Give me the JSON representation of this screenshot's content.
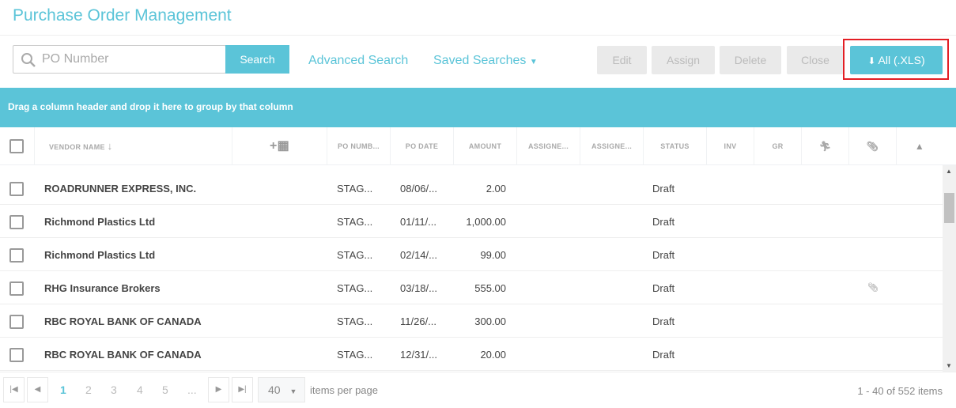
{
  "title": "Purchase Order Management",
  "toolbar": {
    "search_placeholder": "PO Number",
    "search": "Search",
    "advanced": "Advanced Search",
    "saved": "Saved Searches",
    "edit": "Edit",
    "assign": "Assign",
    "delete": "Delete",
    "close": "Close",
    "export": "All (.XLS)"
  },
  "group_hint": "Drag a column header and drop it here to group by that column",
  "columns": {
    "vendor": "VENDOR NAME",
    "po_number": "PO NUMB...",
    "po_date": "PO DATE",
    "amount": "AMOUNT",
    "assignee1": "ASSIGNE...",
    "assignee2": "ASSIGNE...",
    "status": "STATUS",
    "inv": "INV",
    "gr": "GR"
  },
  "rows": [
    {
      "vendor": "ROADRUNNER EXPRESS, INC.",
      "po": "STAG...",
      "date": "08/06/...",
      "amount": "2.00",
      "status": "Draft",
      "attachment": false
    },
    {
      "vendor": "Richmond Plastics Ltd",
      "po": "STAG...",
      "date": "01/11/...",
      "amount": "1,000.00",
      "status": "Draft",
      "attachment": false
    },
    {
      "vendor": "Richmond Plastics Ltd",
      "po": "STAG...",
      "date": "02/14/...",
      "amount": "99.00",
      "status": "Draft",
      "attachment": false
    },
    {
      "vendor": "RHG Insurance Brokers",
      "po": "STAG...",
      "date": "03/18/...",
      "amount": "555.00",
      "status": "Draft",
      "attachment": true
    },
    {
      "vendor": "RBC ROYAL BANK OF CANADA",
      "po": "STAG...",
      "date": "11/26/...",
      "amount": "300.00",
      "status": "Draft",
      "attachment": false
    },
    {
      "vendor": "RBC ROYAL BANK OF CANADA",
      "po": "STAG...",
      "date": "12/31/...",
      "amount": "20.00",
      "status": "Draft",
      "attachment": false
    }
  ],
  "pager": {
    "pages": [
      "1",
      "2",
      "3",
      "4",
      "5",
      "..."
    ],
    "current": "1",
    "page_size": "40",
    "items_per_page": "items per page",
    "summary": "1 - 40 of 552 items"
  },
  "colors": {
    "accent": "#5bc4d8",
    "highlight": "#e31e24"
  }
}
